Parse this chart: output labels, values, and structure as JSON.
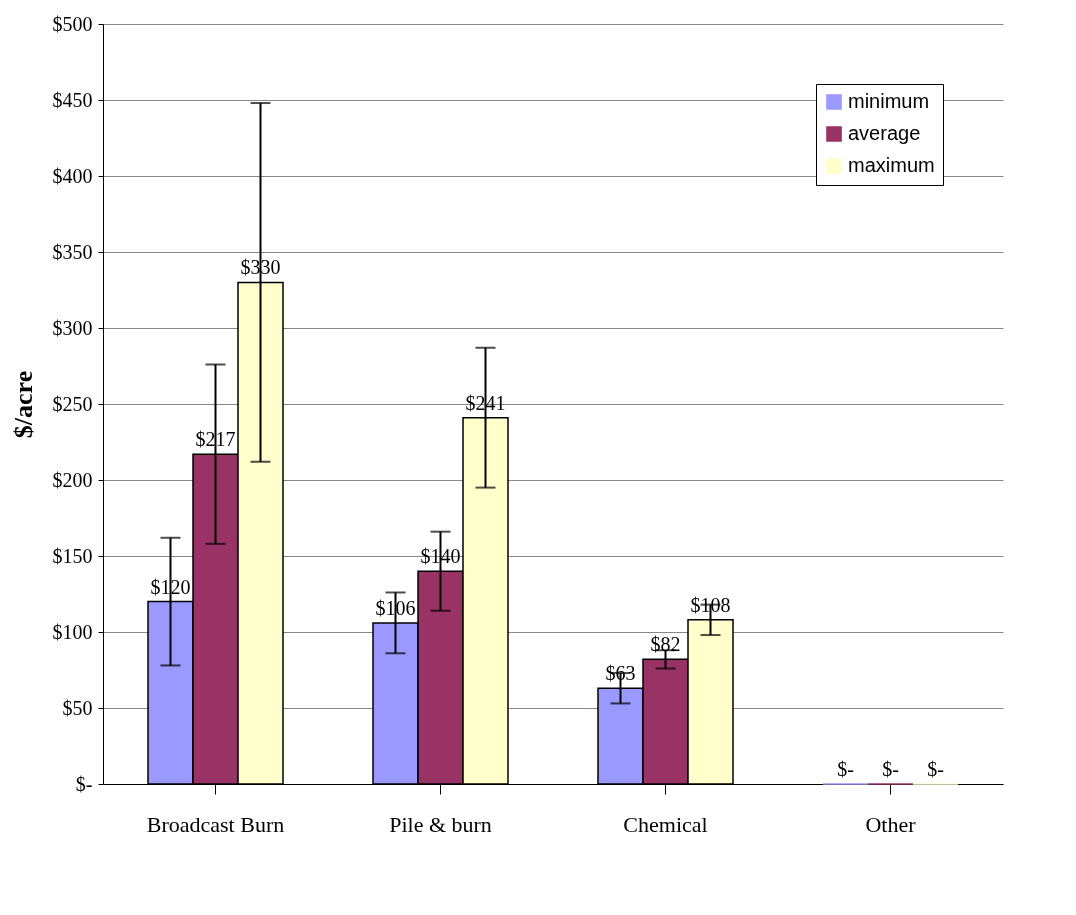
{
  "chart_data": {
    "type": "bar",
    "ylabel": "$/acre",
    "categories": [
      "Broadcast Burn",
      "Pile & burn",
      "Chemical",
      "Other"
    ],
    "series": [
      {
        "name": "minimum",
        "color": "#9999ff",
        "values": [
          120,
          106,
          63,
          0
        ],
        "errors": [
          42,
          20,
          10,
          null
        ],
        "value_labels": [
          "$120",
          "$106",
          "$63",
          "$-"
        ]
      },
      {
        "name": "average",
        "color": "#993366",
        "values": [
          217,
          140,
          82,
          0
        ],
        "errors": [
          59,
          26,
          6,
          null
        ],
        "value_labels": [
          "$217",
          "$140",
          "$82",
          "$-"
        ]
      },
      {
        "name": "maximum",
        "color": "#ffffcc",
        "values": [
          330,
          241,
          108,
          0
        ],
        "errors": [
          118,
          46,
          10,
          null
        ],
        "value_labels": [
          "$330",
          "$241",
          "$108",
          "$-"
        ]
      }
    ],
    "ylim": [
      0,
      500
    ],
    "yticks": [
      {
        "value": 0,
        "label": "$-"
      },
      {
        "value": 50,
        "label": "$50"
      },
      {
        "value": 100,
        "label": "$100"
      },
      {
        "value": 150,
        "label": "$150"
      },
      {
        "value": 200,
        "label": "$200"
      },
      {
        "value": 250,
        "label": "$250"
      },
      {
        "value": 300,
        "label": "$300"
      },
      {
        "value": 350,
        "label": "$350"
      },
      {
        "value": 400,
        "label": "$400"
      },
      {
        "value": 450,
        "label": "$450"
      },
      {
        "value": 500,
        "label": "$500"
      }
    ],
    "grid": "y",
    "legend": "top right"
  }
}
